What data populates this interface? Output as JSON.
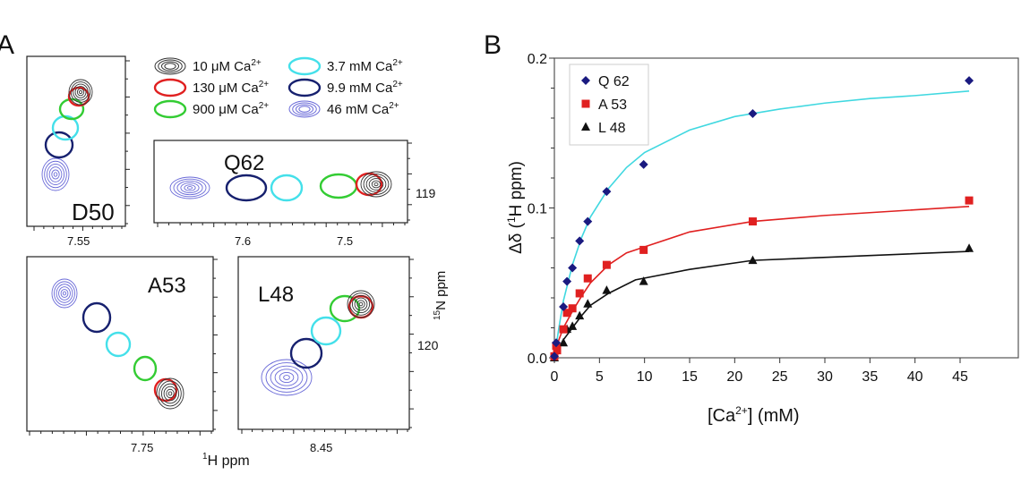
{
  "panel_a": {
    "label": "A",
    "legend": [
      {
        "text": "10 μM Ca",
        "sup": "2+",
        "color": "#333333",
        "style": "multi-contour"
      },
      {
        "text": "130 μM Ca",
        "sup": "2+",
        "color": "#e02020",
        "style": "single"
      },
      {
        "text": "900 μM Ca",
        "sup": "2+",
        "color": "#33cc33",
        "style": "single"
      },
      {
        "text": "3.7 mM Ca",
        "sup": "2+",
        "color": "#44e0ea",
        "style": "single"
      },
      {
        "text": "9.9 mM Ca",
        "sup": "2+",
        "color": "#16206e",
        "style": "single"
      },
      {
        "text": "46 mM Ca",
        "sup": "2+",
        "color": "#6a6ad8",
        "style": "multi-contour"
      }
    ],
    "spectra": [
      {
        "residue": "D50",
        "x_tick": "7.55"
      },
      {
        "residue": "Q62",
        "x_ticks": [
          "7.6",
          "7.5"
        ],
        "y_tick": "119"
      },
      {
        "residue": "A53",
        "x_tick": "7.75"
      },
      {
        "residue": "L48",
        "x_tick": "8.45",
        "y_tick": "120"
      }
    ],
    "x_axis_label": {
      "sup": "1",
      "text": "H ppm"
    },
    "y_axis_label": {
      "sup": "15",
      "text": "N ppm"
    }
  },
  "chart_data": {
    "type": "scatter",
    "panel_label": "B",
    "xlabel": "[Ca2+]  (mM)",
    "xlabel_parts": {
      "pre": "[Ca",
      "sup": "2+",
      "post": "]  (mM)"
    },
    "ylabel": "Δδ (1H ppm)",
    "ylabel_parts": {
      "pre": "Δδ (",
      "sup": "1",
      "post": "H ppm)"
    },
    "xlim": [
      0,
      46
    ],
    "ylim": [
      0,
      0.2
    ],
    "x_ticks": [
      "0",
      "5",
      "10",
      "15",
      "20",
      "25",
      "30",
      "35",
      "40",
      "45"
    ],
    "y_ticks": [
      "0.0",
      "0.1",
      "0.2"
    ],
    "grid": false,
    "legend_position": "top-left",
    "series": [
      {
        "name": "Q 62",
        "marker": "diamond",
        "color": "#1a1a80",
        "fit_color": "#40d8e0",
        "points": [
          [
            0,
            0.001
          ],
          [
            0.2,
            0.01
          ],
          [
            1.0,
            0.034
          ],
          [
            1.4,
            0.051
          ],
          [
            2.0,
            0.06
          ],
          [
            2.8,
            0.078
          ],
          [
            3.7,
            0.091
          ],
          [
            5.8,
            0.111
          ],
          [
            9.9,
            0.129
          ],
          [
            22,
            0.163
          ],
          [
            46,
            0.185
          ]
        ],
        "fit": [
          [
            0,
            0
          ],
          [
            0.5,
            0.02
          ],
          [
            1,
            0.038
          ],
          [
            2,
            0.062
          ],
          [
            3,
            0.08
          ],
          [
            4,
            0.094
          ],
          [
            6,
            0.113
          ],
          [
            8,
            0.127
          ],
          [
            10,
            0.137
          ],
          [
            15,
            0.152
          ],
          [
            20,
            0.161
          ],
          [
            25,
            0.166
          ],
          [
            30,
            0.17
          ],
          [
            35,
            0.173
          ],
          [
            40,
            0.175
          ],
          [
            46,
            0.178
          ]
        ]
      },
      {
        "name": "A 53",
        "marker": "square",
        "color": "#e02020",
        "fit_color": "#e02020",
        "points": [
          [
            0,
            0.001
          ],
          [
            0.3,
            0.005
          ],
          [
            0.2,
            0.008
          ],
          [
            1.0,
            0.019
          ],
          [
            1.4,
            0.03
          ],
          [
            2.0,
            0.033
          ],
          [
            2.8,
            0.043
          ],
          [
            3.7,
            0.053
          ],
          [
            5.8,
            0.062
          ],
          [
            9.9,
            0.072
          ],
          [
            22,
            0.091
          ],
          [
            46,
            0.105
          ]
        ],
        "fit": [
          [
            0,
            0
          ],
          [
            0.5,
            0.012
          ],
          [
            1,
            0.02
          ],
          [
            2,
            0.031
          ],
          [
            3,
            0.041
          ],
          [
            4,
            0.05
          ],
          [
            6,
            0.062
          ],
          [
            8,
            0.07
          ],
          [
            10,
            0.074
          ],
          [
            15,
            0.084
          ],
          [
            22,
            0.091
          ],
          [
            30,
            0.095
          ],
          [
            46,
            0.101
          ]
        ]
      },
      {
        "name": "L 48",
        "marker": "triangle",
        "color": "#111111",
        "fit_color": "#111111",
        "points": [
          [
            0,
            0.0
          ],
          [
            1.0,
            0.01
          ],
          [
            1.4,
            0.019
          ],
          [
            2.0,
            0.021
          ],
          [
            2.8,
            0.028
          ],
          [
            3.7,
            0.036
          ],
          [
            5.8,
            0.045
          ],
          [
            9.9,
            0.051
          ],
          [
            22,
            0.065
          ],
          [
            46,
            0.073
          ]
        ],
        "fit": [
          [
            0,
            0
          ],
          [
            1,
            0.012
          ],
          [
            2,
            0.02
          ],
          [
            3,
            0.028
          ],
          [
            4,
            0.035
          ],
          [
            6,
            0.043
          ],
          [
            9,
            0.052
          ],
          [
            15,
            0.059
          ],
          [
            22,
            0.065
          ],
          [
            46,
            0.071
          ]
        ]
      }
    ]
  }
}
